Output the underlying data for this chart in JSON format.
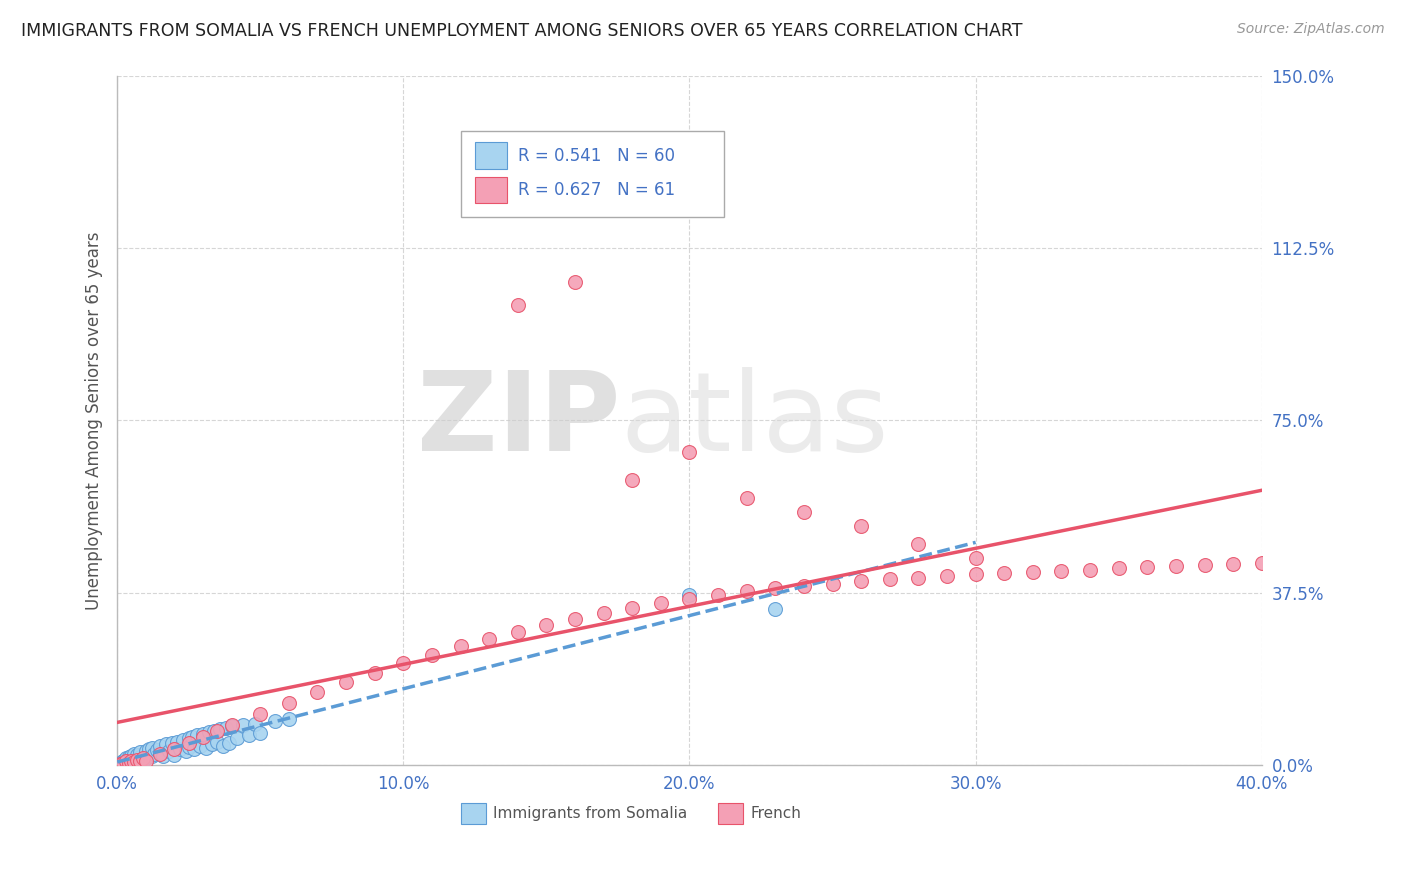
{
  "title": "IMMIGRANTS FROM SOMALIA VS FRENCH UNEMPLOYMENT AMONG SENIORS OVER 65 YEARS CORRELATION CHART",
  "source": "Source: ZipAtlas.com",
  "ylabel": "Unemployment Among Seniors over 65 years",
  "xlim": [
    0.0,
    0.4
  ],
  "ylim": [
    0.0,
    1.5
  ],
  "xticks": [
    0.0,
    0.1,
    0.2,
    0.3,
    0.4
  ],
  "xticklabels": [
    "0.0%",
    "10.0%",
    "20.0%",
    "30.0%",
    "40.0%"
  ],
  "yticks": [
    0.0,
    0.375,
    0.75,
    1.125,
    1.5
  ],
  "yticklabels": [
    "0.0%",
    "37.5%",
    "75.0%",
    "112.5%",
    "150.0%"
  ],
  "legend_r1": "R = 0.541",
  "legend_n1": "N = 60",
  "legend_r2": "R = 0.627",
  "legend_n2": "N = 61",
  "color_somalia": "#a8d4f0",
  "color_french": "#f4a0b5",
  "color_edge_somalia": "#5b9bd5",
  "color_edge_french": "#e8536a",
  "color_line_somalia": "#5b9bd5",
  "color_line_french": "#e8536a",
  "color_text_blue": "#4472c4",
  "background_color": "#ffffff",
  "grid_color": "#bbbbbb",
  "somalia_x": [
    0.001,
    0.002,
    0.002,
    0.003,
    0.003,
    0.004,
    0.004,
    0.005,
    0.005,
    0.006,
    0.006,
    0.007,
    0.007,
    0.008,
    0.008,
    0.009,
    0.01,
    0.01,
    0.011,
    0.012,
    0.012,
    0.013,
    0.014,
    0.015,
    0.015,
    0.016,
    0.017,
    0.018,
    0.019,
    0.02,
    0.021,
    0.022,
    0.023,
    0.024,
    0.025,
    0.025,
    0.026,
    0.027,
    0.028,
    0.029,
    0.03,
    0.031,
    0.032,
    0.033,
    0.034,
    0.035,
    0.036,
    0.037,
    0.038,
    0.039,
    0.04,
    0.042,
    0.044,
    0.046,
    0.048,
    0.05,
    0.055,
    0.06,
    0.2,
    0.23
  ],
  "somalia_y": [
    0.005,
    0.01,
    0.008,
    0.012,
    0.015,
    0.01,
    0.018,
    0.008,
    0.02,
    0.012,
    0.025,
    0.015,
    0.022,
    0.018,
    0.028,
    0.01,
    0.03,
    0.015,
    0.035,
    0.02,
    0.038,
    0.025,
    0.032,
    0.028,
    0.042,
    0.02,
    0.045,
    0.03,
    0.048,
    0.022,
    0.05,
    0.035,
    0.055,
    0.03,
    0.058,
    0.04,
    0.062,
    0.035,
    0.065,
    0.042,
    0.068,
    0.038,
    0.072,
    0.045,
    0.075,
    0.05,
    0.078,
    0.042,
    0.08,
    0.048,
    0.085,
    0.06,
    0.088,
    0.065,
    0.09,
    0.07,
    0.095,
    0.1,
    0.37,
    0.34
  ],
  "french_x": [
    0.001,
    0.002,
    0.003,
    0.004,
    0.005,
    0.006,
    0.007,
    0.008,
    0.009,
    0.01,
    0.015,
    0.02,
    0.025,
    0.03,
    0.035,
    0.04,
    0.05,
    0.06,
    0.07,
    0.08,
    0.09,
    0.1,
    0.11,
    0.12,
    0.13,
    0.14,
    0.15,
    0.16,
    0.17,
    0.18,
    0.19,
    0.2,
    0.21,
    0.22,
    0.23,
    0.24,
    0.25,
    0.26,
    0.27,
    0.28,
    0.29,
    0.3,
    0.31,
    0.32,
    0.33,
    0.34,
    0.35,
    0.36,
    0.37,
    0.38,
    0.39,
    0.4,
    0.14,
    0.16,
    0.18,
    0.2,
    0.22,
    0.24,
    0.26,
    0.28,
    0.3
  ],
  "french_y": [
    0.003,
    0.005,
    0.008,
    0.004,
    0.01,
    0.006,
    0.012,
    0.008,
    0.015,
    0.01,
    0.025,
    0.035,
    0.048,
    0.062,
    0.075,
    0.088,
    0.112,
    0.135,
    0.158,
    0.18,
    0.2,
    0.222,
    0.24,
    0.258,
    0.275,
    0.29,
    0.305,
    0.318,
    0.33,
    0.342,
    0.352,
    0.362,
    0.37,
    0.378,
    0.385,
    0.39,
    0.395,
    0.4,
    0.404,
    0.408,
    0.412,
    0.415,
    0.418,
    0.42,
    0.422,
    0.425,
    0.428,
    0.43,
    0.432,
    0.435,
    0.438,
    0.44,
    1.0,
    1.05,
    0.62,
    0.68,
    0.58,
    0.55,
    0.52,
    0.48,
    0.45
  ]
}
